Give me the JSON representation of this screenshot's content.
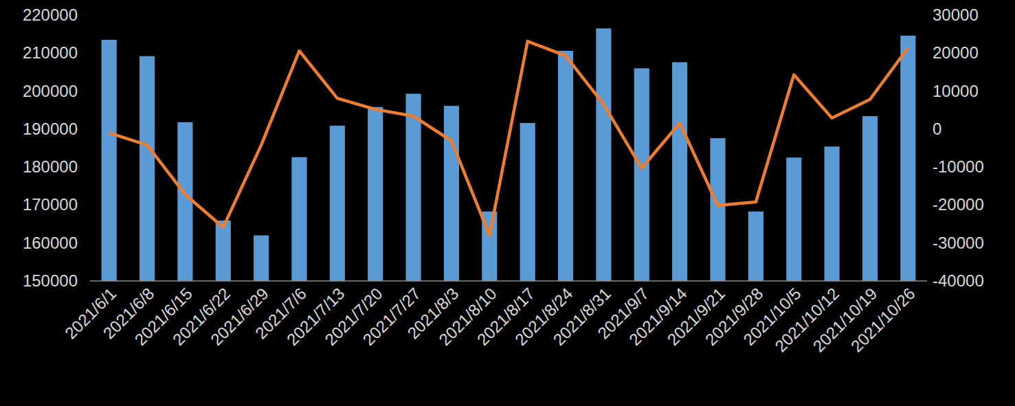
{
  "chart_data": {
    "type": "bar",
    "categories": [
      "2021/6/1",
      "2021/6/8",
      "2021/6/15",
      "2021/6/22",
      "2021/6/29",
      "2021/7/6",
      "2021/7/13",
      "2021/7/20",
      "2021/7/27",
      "2021/8/3",
      "2021/8/10",
      "2021/8/17",
      "2021/8/24",
      "2021/8/31",
      "2021/9/7",
      "2021/9/14",
      "2021/9/21",
      "2021/9/28",
      "2021/10/5",
      "2021/10/12",
      "2021/10/19",
      "2021/10/26"
    ],
    "series": [
      {
        "type": "bar",
        "color": "#5b9bd5",
        "values": [
          213500,
          209200,
          191800,
          165900,
          162000,
          182600,
          190900,
          195800,
          199300,
          196100,
          168300,
          191600,
          210600,
          216500,
          206000,
          207600,
          187600,
          168300,
          182500,
          185400,
          193400,
          214600
        ]
      },
      {
        "type": "line",
        "axis": "y2",
        "color": "#ed7d31",
        "values": [
          -1000,
          -4200,
          -17200,
          -25900,
          -4200,
          20600,
          8100,
          5200,
          3400,
          -3100,
          -28000,
          23100,
          19300,
          6500,
          -10300,
          1600,
          -20100,
          -19200,
          14300,
          2900,
          7800,
          21400
        ]
      }
    ],
    "ylim": [
      150000,
      220000
    ],
    "yticks": [
      150000,
      160000,
      170000,
      180000,
      190000,
      200000,
      210000,
      220000
    ],
    "y2lim": [
      -40000,
      30000
    ],
    "y2ticks": [
      -40000,
      -30000,
      -20000,
      -10000,
      0,
      10000,
      20000,
      30000
    ],
    "grid": false
  }
}
